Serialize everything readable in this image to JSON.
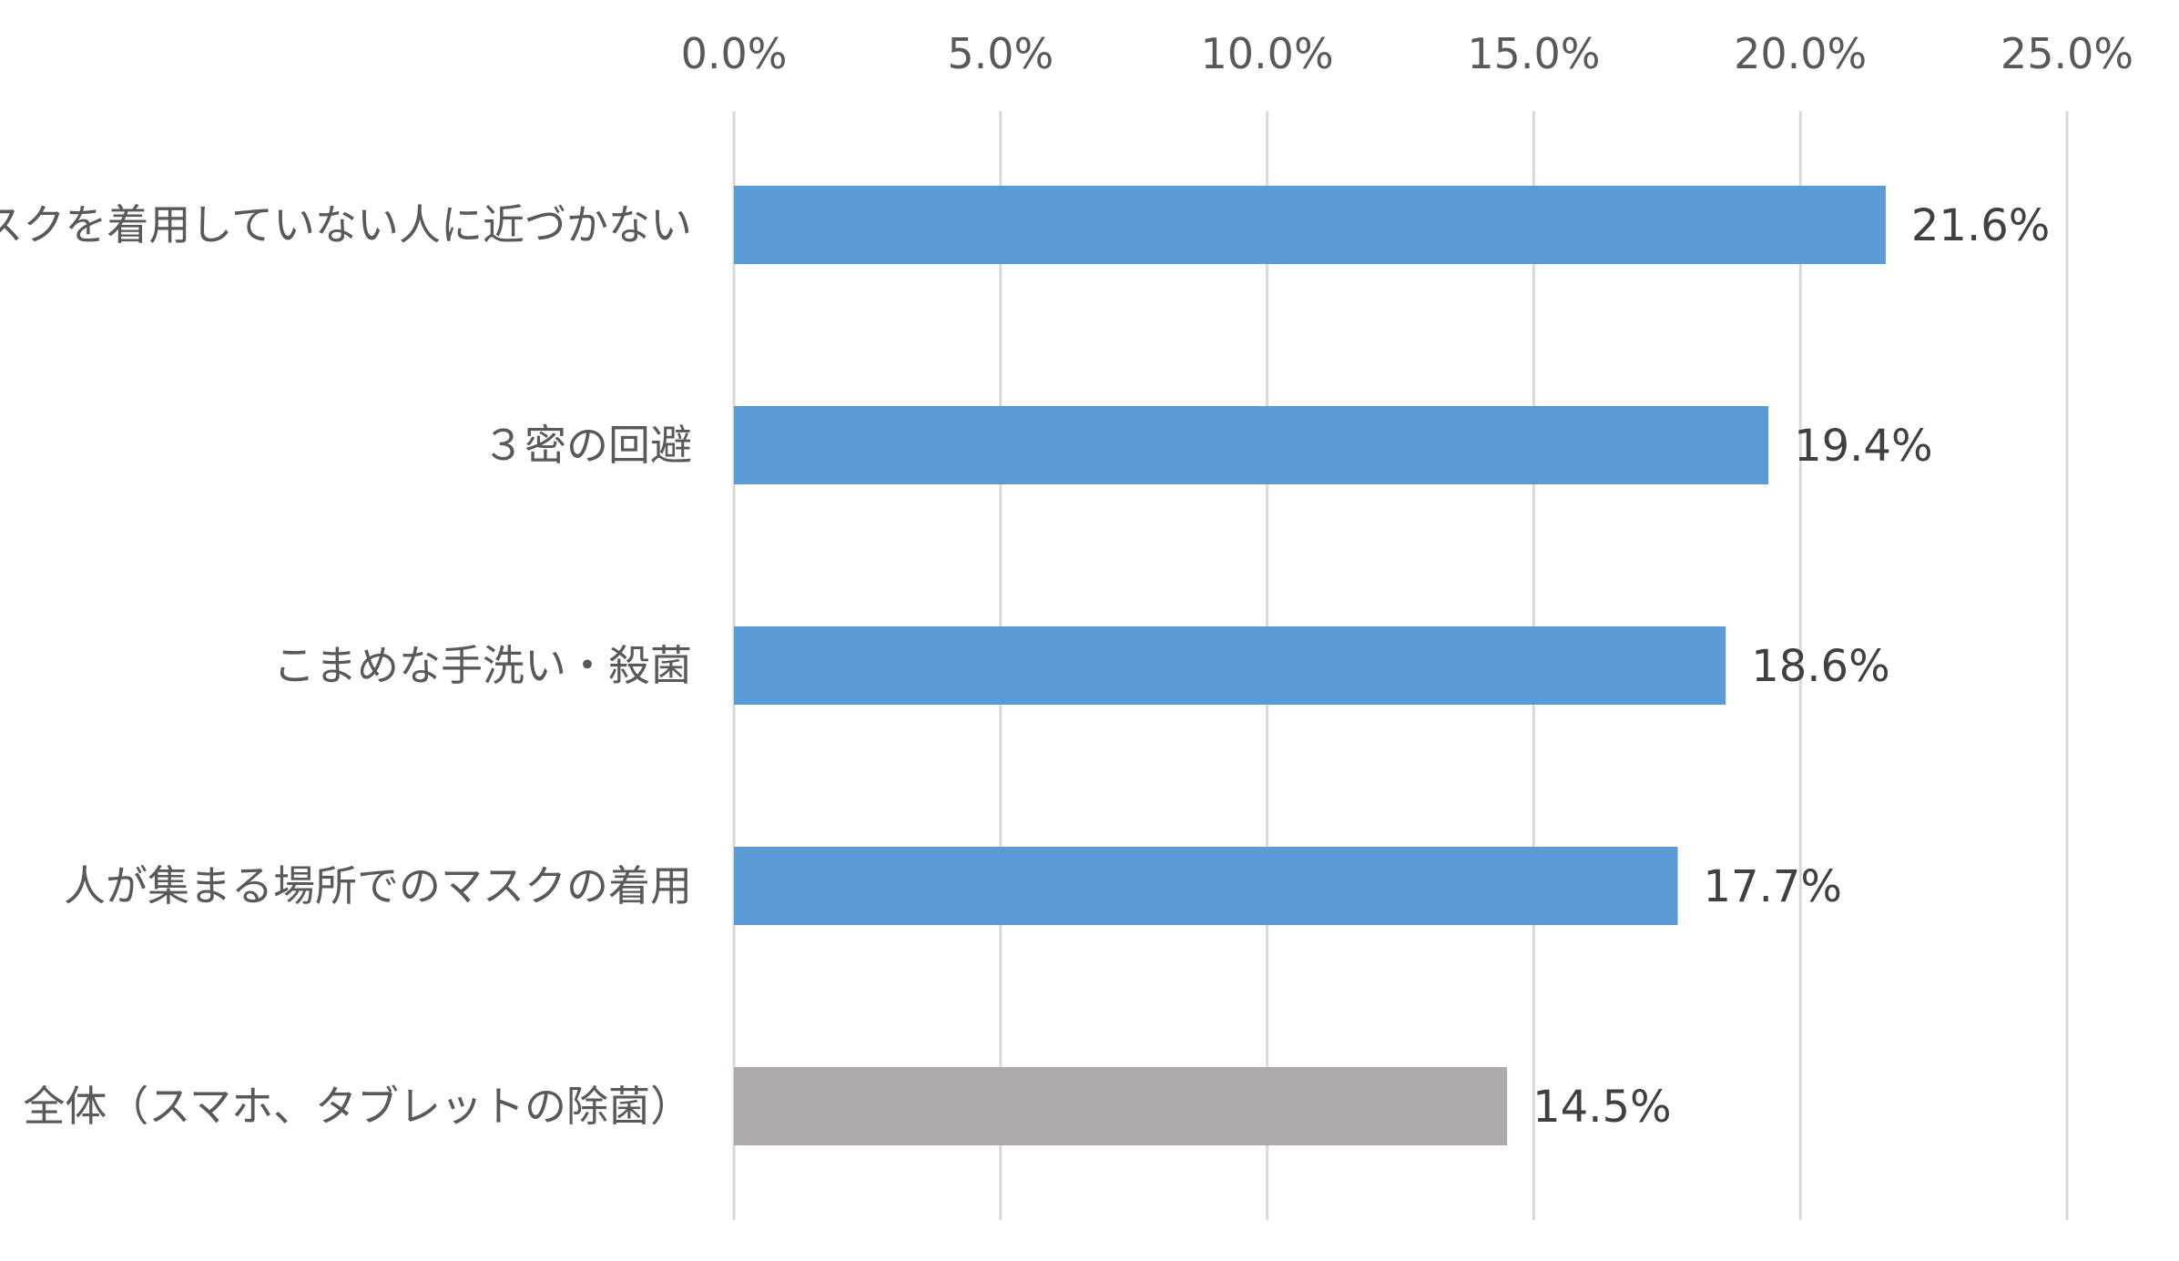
{
  "chart_data": {
    "type": "bar",
    "orientation": "horizontal",
    "title": "",
    "xlabel": "",
    "ylabel": "",
    "xlim": [
      0,
      25
    ],
    "x_ticks": [
      "0.0%",
      "5.0%",
      "10.0%",
      "15.0%",
      "20.0%",
      "25.0%"
    ],
    "axis_position": "top",
    "grid": true,
    "categories": [
      "マスクを着用していない人に近づかない",
      "３密の回避",
      "こまめな手洗い・殺菌",
      "人が集まる場所でのマスクの着用",
      "全体（スマホ、タブレットの除菌）"
    ],
    "values": [
      21.6,
      19.4,
      18.6,
      17.7,
      14.5
    ],
    "data_labels": [
      "21.6%",
      "19.4%",
      "18.6%",
      "17.7%",
      "14.5%"
    ],
    "colors": [
      "#5b9bd5",
      "#5b9bd5",
      "#5b9bd5",
      "#5b9bd5",
      "#aeaaaa"
    ]
  }
}
